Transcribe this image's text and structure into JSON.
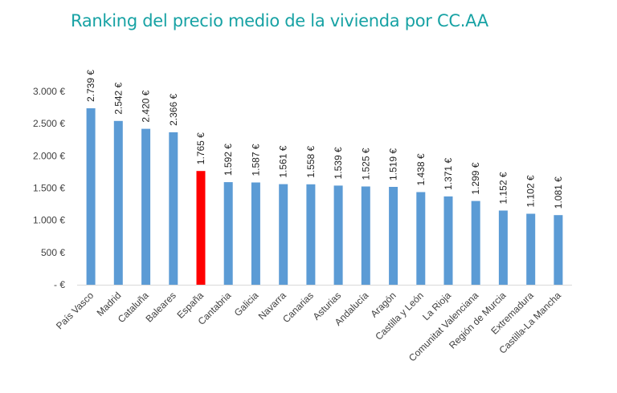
{
  "chart_data": {
    "type": "bar",
    "title": "Ranking del precio medio de la vivienda por CC.AA",
    "categories": [
      "País Vasco",
      "Madrid",
      "Cataluña",
      "Baleares",
      "España",
      "Cantabria",
      "Galicia",
      "Navarra",
      "Canarias",
      "Asturias",
      "Andalucía",
      "Aragón",
      "Castilla y León",
      "La Rioja",
      "Comunitat Valenciana",
      "Región de Murcia",
      "Extremadura",
      "Castilla-La Mancha"
    ],
    "values": [
      2739,
      2542,
      2420,
      2366,
      1765,
      1592,
      1587,
      1561,
      1558,
      1539,
      1525,
      1519,
      1438,
      1371,
      1299,
      1152,
      1102,
      1081
    ],
    "data_labels": [
      "2.739 €",
      "2.542 €",
      "2.420 €",
      "2.366 €",
      "1.765 €",
      "1.592 €",
      "1.587 €",
      "1.561 €",
      "1.558 €",
      "1.539 €",
      "1.525 €",
      "1.519 €",
      "1.438 €",
      "1.371 €",
      "1.299 €",
      "1.152 €",
      "1.102 €",
      "1.081 €"
    ],
    "highlight_category": "España",
    "ylim": [
      0,
      3000
    ],
    "yticks": [
      0,
      500,
      1000,
      1500,
      2000,
      2500,
      3000
    ],
    "ytick_labels": [
      "-   €",
      "500 €",
      "1.000 €",
      "1.500 €",
      "2.000 €",
      "2.500 €",
      "3.000 €"
    ],
    "grid": false,
    "legend": "none",
    "colors": {
      "bar": "#5b9bd5",
      "highlight": "#ff0000",
      "axis": "#d9d9d9",
      "title": "#17a2a4"
    }
  }
}
